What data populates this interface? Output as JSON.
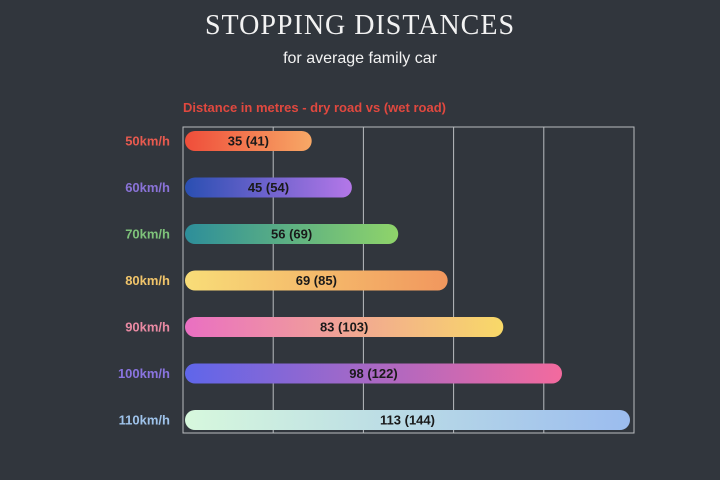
{
  "chart_data": {
    "type": "bar",
    "orientation": "horizontal",
    "title": "STOPPING DISTANCES",
    "subtitle": "for average family car",
    "xlabel": "Distance in metres - dry road vs (wet road)",
    "ylabel": "",
    "grid": true,
    "categories": [
      "50km/h",
      "60km/h",
      "70km/h",
      "80km/h",
      "90km/h",
      "100km/h",
      "110km/h"
    ],
    "category_colors": [
      "#e85a4f",
      "#8a73d8",
      "#7ec27a",
      "#f0c46a",
      "#e98aa3",
      "#8a74e0",
      "#9fc3ea"
    ],
    "series": [
      {
        "name": "dry road",
        "values": [
          35,
          45,
          56,
          69,
          83,
          98,
          113
        ]
      },
      {
        "name": "wet road",
        "values": [
          41,
          54,
          69,
          85,
          103,
          122,
          144
        ]
      }
    ],
    "labels": [
      "35 (41)",
      "45 (54)",
      "56 (69)",
      "69 (85)",
      "83 (103)",
      "98 (122)",
      "113 (144)"
    ],
    "bar_gradients": [
      [
        "#ef4d3a",
        "#f7a866"
      ],
      [
        "#2a4fb2",
        "#b477e8"
      ],
      [
        "#2d8e9a",
        "#8fd46a"
      ],
      [
        "#f8dd78",
        "#f1975e"
      ],
      [
        "#ea6fc2",
        "#f8d968"
      ],
      [
        "#5f66ea",
        "#f36a9e"
      ],
      [
        "#d7f8dd",
        "#9bbcef"
      ]
    ],
    "xlim": [
      0,
      144
    ]
  }
}
